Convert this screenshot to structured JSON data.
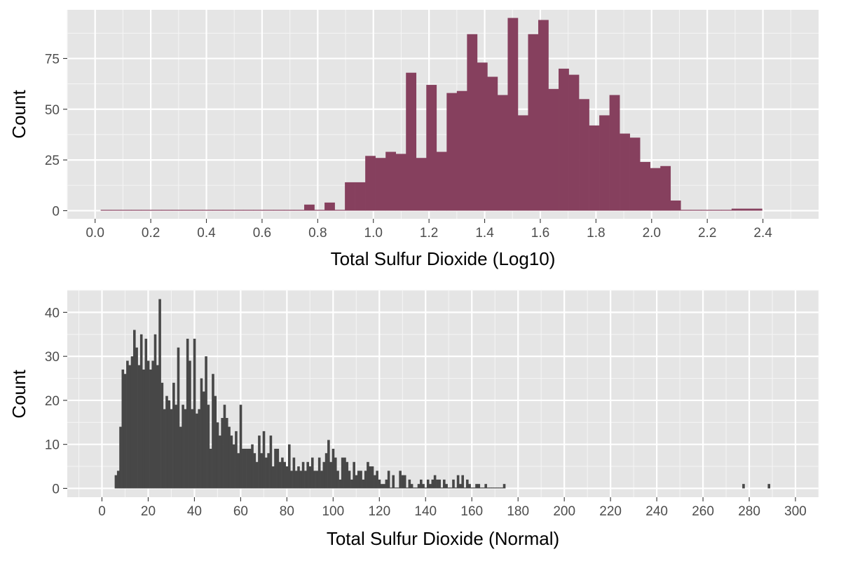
{
  "chart_data": [
    {
      "type": "histogram",
      "xlabel": "Total Sulfur Dioxide (Log10)",
      "ylabel": "Count",
      "xlim": [
        -0.1,
        2.6
      ],
      "ylim": [
        -4,
        99
      ],
      "xticks": [
        "0.0",
        "0.2",
        "0.4",
        "0.6",
        "0.8",
        "1.0",
        "1.2",
        "1.4",
        "1.6",
        "1.8",
        "2.0",
        "2.2",
        "2.4"
      ],
      "yticks": [
        "0",
        "25",
        "50",
        "75"
      ],
      "grid": true,
      "bar_color": "#86405e",
      "bins": {
        "start": 0.02,
        "width": 0.03657,
        "counts": [
          0,
          0,
          0,
          0,
          0,
          0,
          0,
          0,
          0,
          0,
          0,
          0,
          0,
          0,
          0,
          0,
          0,
          0,
          0,
          0,
          3,
          0,
          4,
          0,
          14,
          14,
          27,
          26,
          29,
          28,
          68,
          26,
          62,
          29,
          58,
          59,
          87,
          73,
          66,
          57,
          95,
          47,
          87,
          94,
          60,
          70,
          67,
          55,
          42,
          47,
          57,
          38,
          36,
          24,
          21,
          22,
          5,
          0,
          0,
          0,
          0,
          0,
          1,
          1,
          1
        ]
      }
    },
    {
      "type": "histogram",
      "xlabel": "Total Sulfur Dioxide (Normal)",
      "ylabel": "Count",
      "xlim": [
        -15,
        310
      ],
      "ylim": [
        -2,
        45
      ],
      "xticks": [
        "0",
        "20",
        "40",
        "60",
        "80",
        "100",
        "120",
        "140",
        "160",
        "180",
        "200",
        "220",
        "240",
        "260",
        "280",
        "300"
      ],
      "yticks": [
        "0",
        "10",
        "20",
        "30",
        "40"
      ],
      "grid": true,
      "bar_color": "#474747",
      "bins": {
        "start": 5.5,
        "width": 1,
        "counts": [
          3,
          4,
          14,
          27,
          26,
          29,
          28,
          30,
          36,
          32,
          28,
          35,
          27,
          34,
          29,
          27,
          29,
          35,
          28,
          43,
          24,
          18,
          21,
          20,
          18,
          24,
          19,
          32,
          14,
          19,
          18,
          34,
          29,
          18,
          34,
          17,
          18,
          25,
          22,
          30,
          19,
          9,
          26,
          21,
          15,
          12,
          16,
          19,
          16,
          14,
          12,
          10,
          13,
          8,
          19,
          9,
          9,
          9,
          9,
          10,
          8,
          6,
          12,
          8,
          13,
          7,
          8,
          12,
          5,
          9,
          9,
          6,
          7,
          6,
          5,
          10,
          4,
          7,
          4,
          5,
          4,
          6,
          4,
          6,
          5,
          7,
          4,
          4,
          7,
          4,
          6,
          8,
          11,
          6,
          9,
          7,
          4,
          2,
          7,
          7,
          6,
          4,
          2,
          6,
          3,
          4,
          4,
          2,
          4,
          6,
          5,
          5,
          3,
          4,
          2,
          1,
          1,
          2,
          4,
          0,
          3,
          0,
          0,
          4,
          3,
          3,
          0,
          2,
          1,
          0,
          0,
          1,
          2,
          1,
          0,
          2,
          1,
          2,
          3,
          2,
          2,
          0,
          2,
          1,
          0,
          0,
          2,
          0,
          3,
          1,
          3,
          0,
          2,
          1,
          0,
          0,
          1,
          1,
          0,
          0,
          1,
          0,
          0,
          0,
          0,
          0,
          0,
          0,
          1
        ],
        "outliers": [
          {
            "x": 277.5,
            "count": 1
          },
          {
            "x": 288.5,
            "count": 1
          }
        ]
      }
    }
  ]
}
